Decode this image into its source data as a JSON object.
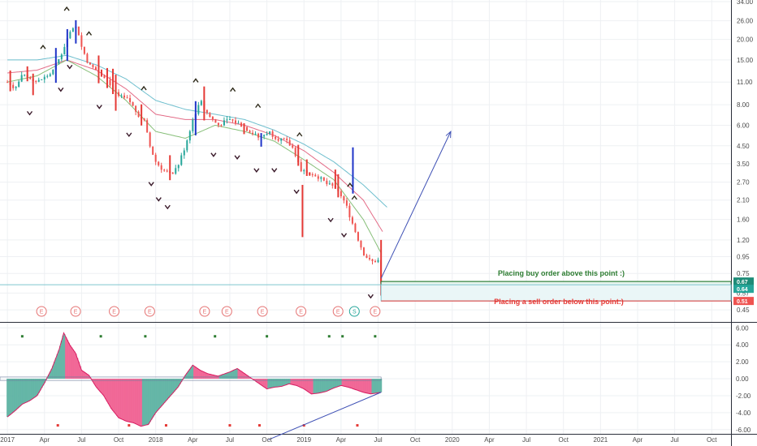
{
  "chart_data": [
    {
      "type": "candlestick",
      "scale": "log",
      "ylim": [
        0.38,
        34
      ],
      "y_ticks": [
        "34.00",
        "26.00",
        "20.00",
        "15.00",
        "11.00",
        "8.00",
        "6.00",
        "4.50",
        "3.50",
        "2.70",
        "2.10",
        "1.60",
        "1.20",
        "0.95",
        "0.75",
        "0.57",
        "0.45"
      ],
      "x_ticks": [
        "2017",
        "Apr",
        "Jul",
        "Oct",
        "2018",
        "Apr",
        "Jul",
        "Oct",
        "2019",
        "Apr",
        "Jul",
        "Oct",
        "2020",
        "Apr",
        "Jul",
        "Oct",
        "2021",
        "Apr",
        "Jul",
        "Oct"
      ],
      "price_labels": [
        {
          "value": "0.67",
          "color": "#1e8c78"
        },
        {
          "value": "0.64",
          "color": "#26a69a"
        },
        {
          "value": "0.51",
          "color": "#ef5350"
        }
      ],
      "levels": {
        "buy": 0.67,
        "sell": 0.51,
        "close": 0.64,
        "horizontal_line": 0.64
      },
      "annotations": {
        "buy": "Placing buy order above this point :)",
        "sell": "Placing a sell order below this point:)"
      },
      "projection": {
        "from": [
          2019.52,
          0.7
        ],
        "to": [
          2019.99,
          5.5
        ]
      },
      "price_path": [
        [
          2017.0,
          11
        ],
        [
          2017.05,
          10
        ],
        [
          2017.1,
          12
        ],
        [
          2017.2,
          11
        ],
        [
          2017.3,
          12.5
        ],
        [
          2017.36,
          16
        ],
        [
          2017.42,
          22
        ],
        [
          2017.47,
          24
        ],
        [
          2017.5,
          18
        ],
        [
          2017.55,
          14
        ],
        [
          2017.6,
          13
        ],
        [
          2017.67,
          11.5
        ],
        [
          2017.75,
          9
        ],
        [
          2017.82,
          8.5
        ],
        [
          2017.88,
          7
        ],
        [
          2017.92,
          6.5
        ],
        [
          2017.96,
          4.5
        ],
        [
          2018.0,
          3.6
        ],
        [
          2018.05,
          3.2
        ],
        [
          2018.1,
          3.0
        ],
        [
          2018.15,
          3.4
        ],
        [
          2018.2,
          4.5
        ],
        [
          2018.25,
          6.5
        ],
        [
          2018.3,
          8.5
        ],
        [
          2018.35,
          7
        ],
        [
          2018.42,
          6
        ],
        [
          2018.5,
          6.5
        ],
        [
          2018.58,
          6
        ],
        [
          2018.65,
          5.4
        ],
        [
          2018.7,
          5.0
        ],
        [
          2018.76,
          5.5
        ],
        [
          2018.82,
          5.0
        ],
        [
          2018.88,
          4.8
        ],
        [
          2018.93,
          4.3
        ],
        [
          2018.98,
          3.2
        ],
        [
          2019.04,
          3.1
        ],
        [
          2019.1,
          2.9
        ],
        [
          2019.16,
          2.6
        ],
        [
          2019.22,
          2.5
        ],
        [
          2019.28,
          2.0
        ],
        [
          2019.34,
          1.4
        ],
        [
          2019.4,
          1.0
        ],
        [
          2019.45,
          0.88
        ],
        [
          2019.5,
          0.9
        ],
        [
          2019.52,
          0.64
        ]
      ],
      "ema_lines": [
        {
          "color": "#5fb8c9",
          "path": [
            [
              2017.0,
              15
            ],
            [
              2017.2,
              15
            ],
            [
              2017.4,
              16
            ],
            [
              2017.6,
              14
            ],
            [
              2017.8,
              11.5
            ],
            [
              2018.0,
              8.5
            ],
            [
              2018.2,
              7.5
            ],
            [
              2018.4,
              7
            ],
            [
              2018.6,
              6.5
            ],
            [
              2018.8,
              5.6
            ],
            [
              2019.0,
              4.6
            ],
            [
              2019.2,
              3.6
            ],
            [
              2019.4,
              2.6
            ],
            [
              2019.56,
              1.9
            ]
          ]
        },
        {
          "color": "#e05c7a",
          "path": [
            [
              2017.0,
              12.5
            ],
            [
              2017.2,
              13
            ],
            [
              2017.4,
              15
            ],
            [
              2017.6,
              13
            ],
            [
              2017.8,
              10
            ],
            [
              2018.0,
              7
            ],
            [
              2018.2,
              6.5
            ],
            [
              2018.4,
              6.5
            ],
            [
              2018.6,
              6
            ],
            [
              2018.8,
              5.2
            ],
            [
              2019.0,
              4.2
            ],
            [
              2019.2,
              3.1
            ],
            [
              2019.4,
              2.1
            ],
            [
              2019.53,
              1.35
            ]
          ]
        },
        {
          "color": "#7ab86a",
          "path": [
            [
              2017.0,
              11
            ],
            [
              2017.2,
              12
            ],
            [
              2017.4,
              15
            ],
            [
              2017.6,
              12
            ],
            [
              2017.8,
              8.5
            ],
            [
              2018.0,
              5.5
            ],
            [
              2018.2,
              5.0
            ],
            [
              2018.4,
              6.0
            ],
            [
              2018.6,
              5.5
            ],
            [
              2018.8,
              4.8
            ],
            [
              2019.0,
              3.7
            ],
            [
              2019.2,
              2.8
            ],
            [
              2019.4,
              1.6
            ],
            [
              2019.52,
              1.0
            ]
          ]
        }
      ],
      "pivot_highs": [
        2017.24,
        2017.4,
        2017.47,
        2017.55,
        2017.92,
        2018.27,
        2018.52,
        2018.69,
        2018.97,
        2019.31,
        2019.34
      ],
      "pivot_lows": [
        2017.15,
        2017.36,
        2017.42,
        2017.62,
        2017.82,
        2017.97,
        2018.02,
        2018.08,
        2018.39,
        2018.55,
        2018.68,
        2018.8,
        2018.95,
        2019.18,
        2019.27,
        2019.45
      ],
      "earnings_markers": [
        {
          "x": 2017.23,
          "label": "E"
        },
        {
          "x": 2017.46,
          "label": "E"
        },
        {
          "x": 2017.72,
          "label": "E"
        },
        {
          "x": 2017.96,
          "label": "E"
        },
        {
          "x": 2018.33,
          "label": "E"
        },
        {
          "x": 2018.48,
          "label": "E"
        },
        {
          "x": 2018.72,
          "label": "E"
        },
        {
          "x": 2018.98,
          "label": "E"
        },
        {
          "x": 2019.23,
          "label": "E"
        },
        {
          "x": 2019.34,
          "label": "S"
        },
        {
          "x": 2019.48,
          "label": "E"
        }
      ]
    },
    {
      "type": "histogram",
      "ylim": [
        -6.5,
        6.6
      ],
      "y_ticks": [
        "6.00",
        "4.00",
        "2.00",
        "0.00",
        "-2.00",
        "-4.00",
        "-6.00"
      ],
      "oscillator": [
        [
          2017.0,
          -4.5
        ],
        [
          2017.05,
          -3.8
        ],
        [
          2017.1,
          -3.0
        ],
        [
          2017.15,
          -2.6
        ],
        [
          2017.2,
          -2.0
        ],
        [
          2017.25,
          -0.5
        ],
        [
          2017.3,
          1.2
        ],
        [
          2017.35,
          3.5
        ],
        [
          2017.38,
          5.4
        ],
        [
          2017.42,
          4.0
        ],
        [
          2017.46,
          3.0
        ],
        [
          2017.5,
          1.0
        ],
        [
          2017.55,
          0.4
        ],
        [
          2017.6,
          -1.0
        ],
        [
          2017.65,
          -2.0
        ],
        [
          2017.7,
          -3.5
        ],
        [
          2017.75,
          -4.6
        ],
        [
          2017.8,
          -5.0
        ],
        [
          2017.85,
          -5.2
        ],
        [
          2017.9,
          -5.6
        ],
        [
          2017.95,
          -5.4
        ],
        [
          2018.0,
          -4.0
        ],
        [
          2018.05,
          -3.0
        ],
        [
          2018.1,
          -2.0
        ],
        [
          2018.15,
          -1.0
        ],
        [
          2018.2,
          0.4
        ],
        [
          2018.25,
          1.6
        ],
        [
          2018.3,
          1.0
        ],
        [
          2018.35,
          0.6
        ],
        [
          2018.42,
          0.3
        ],
        [
          2018.5,
          0.8
        ],
        [
          2018.55,
          1.2
        ],
        [
          2018.6,
          0.6
        ],
        [
          2018.65,
          0.0
        ],
        [
          2018.7,
          -0.6
        ],
        [
          2018.75,
          -1.2
        ],
        [
          2018.8,
          -1.0
        ],
        [
          2018.85,
          -0.9
        ],
        [
          2018.9,
          -0.6
        ],
        [
          2018.95,
          -0.8
        ],
        [
          2019.0,
          -1.2
        ],
        [
          2019.05,
          -1.8
        ],
        [
          2019.1,
          -1.7
        ],
        [
          2019.15,
          -1.5
        ],
        [
          2019.2,
          -1.1
        ],
        [
          2019.25,
          -0.8
        ],
        [
          2019.3,
          -1.0
        ],
        [
          2019.35,
          -1.3
        ],
        [
          2019.4,
          -1.6
        ],
        [
          2019.45,
          -1.8
        ],
        [
          2019.52,
          -1.6
        ]
      ],
      "green_dots": [
        2017.1,
        2017.63,
        2017.93,
        2018.4,
        2018.75,
        2019.17,
        2019.26,
        2019.48
      ],
      "red_dots": [
        2017.34,
        2017.82,
        2018.07,
        2018.5,
        2018.7,
        2019.0,
        2019.36
      ],
      "trendline": {
        "from": [
          2018.76,
          -7.2
        ],
        "to": [
          2019.52,
          -1.6
        ]
      }
    }
  ]
}
